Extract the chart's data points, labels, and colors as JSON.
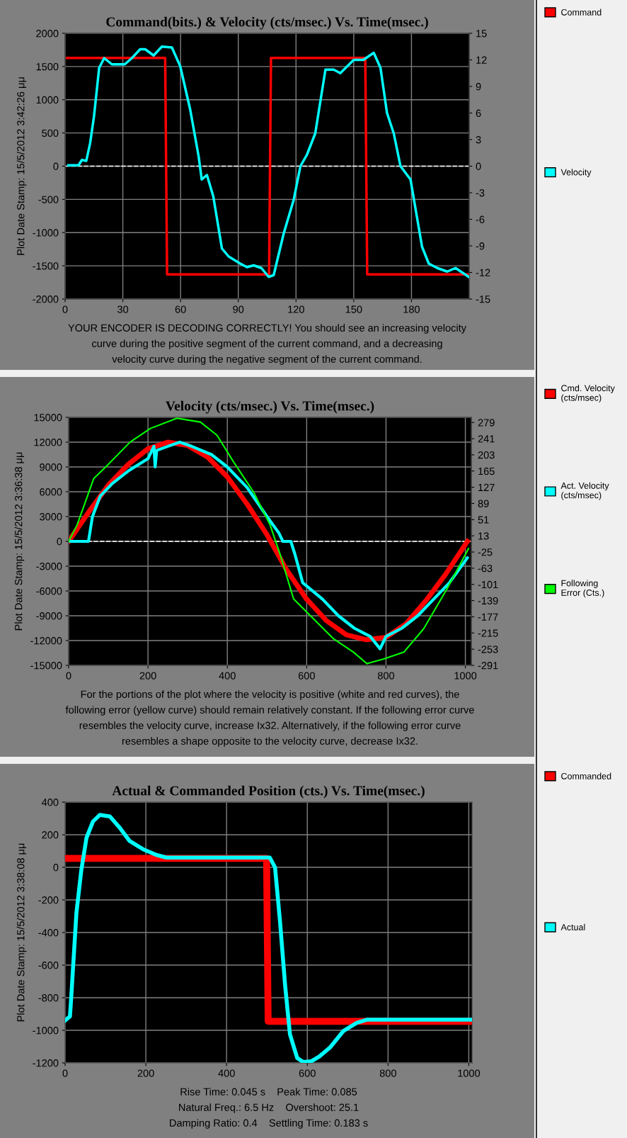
{
  "chart_data": [
    {
      "type": "line",
      "title": "Command(bits.) & Velocity (cts/msec.) Vs. Time(msec.)",
      "ylabel": "Plot Date Stamp: 15/5/2012 3:42:26 μμ",
      "xlim": [
        0,
        210
      ],
      "xticks": [
        0,
        30,
        60,
        90,
        120,
        150,
        180
      ],
      "ylim": [
        -2000,
        2000
      ],
      "yticks": [
        -2000,
        -1500,
        -1000,
        -500,
        0,
        500,
        1000,
        1500,
        2000
      ],
      "y2lim": [
        -15,
        15
      ],
      "y2ticks": [
        -15,
        -12,
        -9,
        -6,
        -3,
        0,
        3,
        6,
        9,
        12,
        15
      ],
      "grid": true,
      "legend": "right",
      "series": [
        {
          "name": "Command",
          "color": "#ff0000",
          "x": [
            1,
            52,
            53,
            106,
            107,
            156,
            157,
            210
          ],
          "values": [
            1630,
            1630,
            -1630,
            -1630,
            1630,
            1630,
            -1630,
            -1630
          ]
        },
        {
          "name": "Velocity",
          "color": "#00ffff",
          "axis": "y2",
          "x": [
            1.7,
            7,
            8.7,
            11,
            13,
            15,
            17.7,
            20.3,
            24.3,
            31,
            34.7,
            39,
            41.6,
            46,
            50.3,
            55.5,
            59.8,
            65,
            69.4,
            71,
            73.7,
            77,
            81.5,
            85,
            91,
            94.5,
            98,
            102,
            105.8,
            108.4,
            113.6,
            118.8,
            122.3,
            125.7,
            130,
            135.3,
            139.6,
            143,
            150,
            155,
            160.4,
            163.9,
            167.3,
            170.8,
            174.3,
            179.5,
            185.5,
            189,
            193.4,
            198.6,
            202.9,
            209.8
          ],
          "values": [
            0.1,
            0.1,
            0.7,
            0.6,
            2.6,
            5.6,
            11.1,
            12.2,
            11.5,
            11.5,
            12.2,
            13.2,
            13.2,
            12.5,
            13.5,
            13.4,
            11.3,
            6.4,
            1.1,
            -1.5,
            -1.0,
            -3.4,
            -9.3,
            -10.2,
            -11.0,
            -11.4,
            -11.2,
            -11.5,
            -12.5,
            -12.3,
            -7.6,
            -3.8,
            0,
            1.3,
            3.7,
            10.9,
            10.9,
            10.5,
            12.0,
            12.0,
            12.8,
            11.1,
            6,
            3.7,
            0,
            -1.5,
            -9.1,
            -11.0,
            -11.5,
            -11.9,
            -11.5,
            -12.5
          ]
        }
      ],
      "ref_lines": [
        {
          "axis": "y",
          "value": 0,
          "label": null,
          "color": "#ffffff",
          "line_style": "dashed"
        }
      ],
      "annotations": [
        "YOUR ENCODER IS DECODING CORRECTLY! You should see an increasing velocity",
        "curve during the positive segment of the current command, and a decreasing",
        "velocity curve during the negative segment of the current command."
      ]
    },
    {
      "type": "line",
      "title": "Velocity (cts/msec.) Vs. Time(msec.)",
      "ylabel": "Plot Date Stamp: 15/5/2012 3:36:38 μμ",
      "xlim": [
        0,
        1015
      ],
      "xticks": [
        0,
        200,
        400,
        600,
        800,
        1000
      ],
      "ylim": [
        -15000,
        15000
      ],
      "yticks": [
        -15000,
        -12000,
        -9000,
        -6000,
        -3000,
        0,
        3000,
        6000,
        9000,
        12000,
        15000
      ],
      "y2lim": [
        -291,
        291
      ],
      "y2ticks": [
        -291,
        -253,
        -215,
        -177,
        -139,
        -101,
        -63,
        -25,
        13,
        51,
        89,
        127,
        165,
        203,
        241,
        279
      ],
      "grid": true,
      "legend": "right",
      "series": [
        {
          "name": "Cmd. Velocity\n(cts/msec)",
          "color": "#ff0000",
          "x": [
            0,
            50,
            100,
            150,
            200,
            250,
            300,
            350,
            400,
            450,
            500,
            550,
            600,
            650,
            700,
            750,
            800,
            850,
            900,
            950,
            1005
          ],
          "values": [
            0,
            3500,
            6800,
            9300,
            11200,
            12000,
            11600,
            10200,
            7800,
            4500,
            800,
            -3500,
            -7000,
            -9600,
            -11300,
            -11900,
            -11600,
            -10000,
            -7200,
            -4000,
            0
          ]
        },
        {
          "name": "Act. Velocity\n(cts/msec)",
          "color": "#00ffff",
          "x": [
            0,
            30,
            50,
            55,
            60,
            80,
            110,
            150,
            200,
            215,
            218,
            222,
            250,
            280,
            310,
            360,
            400,
            450,
            500,
            530,
            540,
            560,
            570,
            590,
            640,
            680,
            720,
            760,
            785,
            800,
            840,
            880,
            920,
            960,
            1005
          ],
          "values": [
            0,
            0,
            0,
            1500,
            3000,
            5500,
            7000,
            8500,
            10000,
            11500,
            9000,
            11000,
            11500,
            12000,
            11500,
            10500,
            9000,
            6500,
            3000,
            1000,
            0,
            0,
            -1500,
            -5000,
            -7000,
            -9000,
            -10500,
            -11500,
            -13000,
            -11500,
            -10500,
            -9000,
            -7000,
            -5000,
            -2000
          ]
        },
        {
          "name": "Following\nError (Cts.)",
          "color": "#00ff00",
          "axis": "y2",
          "x": [
            0,
            21,
            42,
            63,
            97,
            155,
            206,
            273,
            332,
            374,
            416,
            466,
            508,
            534,
            567,
            609,
            668,
            718,
            752,
            794,
            845,
            895,
            954,
            1008
          ],
          "values": [
            0,
            38,
            92,
            147,
            178,
            233,
            265,
            289,
            280,
            249,
            186,
            116,
            38,
            -33,
            -135,
            -174,
            -229,
            -260,
            -287,
            -276,
            -260,
            -205,
            -111,
            -17
          ]
        }
      ],
      "ref_lines": [
        {
          "axis": "y",
          "value": 0,
          "label": null,
          "color": "#ffffff",
          "line_style": "dashed"
        }
      ],
      "annotations": [
        "For the portions of the plot where the velocity is positive (white and red curves), the",
        "following error (yellow curve) should remain relatively constant. If the following error curve",
        "resembles the velocity curve, increase Ix32. Alternatively, if the following error curve",
        "resembles a shape opposite to the velocity curve, decrease Ix32."
      ]
    },
    {
      "type": "line",
      "title": "Actual & Commanded Position (cts.) Vs. Time(msec.)",
      "ylabel": "Plot Date Stamp: 15/5/2012 3:38:08 μμ",
      "xlim": [
        0,
        1008
      ],
      "xticks": [
        0,
        200,
        400,
        600,
        800,
        1000
      ],
      "ylim": [
        -1200,
        400
      ],
      "yticks": [
        -1200,
        -1000,
        -800,
        -600,
        -400,
        -200,
        0,
        200,
        400
      ],
      "grid": true,
      "legend": "right",
      "series": [
        {
          "name": "Commanded",
          "color": "#ff0000",
          "x": [
            0,
            499,
            503,
            1008
          ],
          "values": [
            55,
            55,
            -945,
            -945
          ]
        },
        {
          "name": "Actual",
          "color": "#00ffff",
          "x": [
            0,
            12,
            15,
            28,
            40,
            53,
            69,
            86,
            111,
            136,
            160,
            193,
            226,
            251,
            507,
            520,
            532,
            545,
            557,
            575,
            590,
            610,
            630,
            656,
            689,
            722,
            747,
            1008
          ],
          "values": [
            -940,
            -915,
            -805,
            -281,
            -20,
            181,
            281,
            322,
            312,
            241,
            161,
            111,
            76,
            60,
            60,
            0,
            -322,
            -724,
            -1025,
            -1170,
            -1195,
            -1190,
            -1160,
            -1106,
            -1005,
            -955,
            -935,
            -935
          ]
        }
      ],
      "annotations": [
        "Rise Time: 0.045 s    Peak Time: 0.085",
        "Natural Freq.: 6.5 Hz    Overshoot: 25.1",
        "Damping Ratio: 0.4    Settling Time: 0.183 s"
      ]
    }
  ]
}
